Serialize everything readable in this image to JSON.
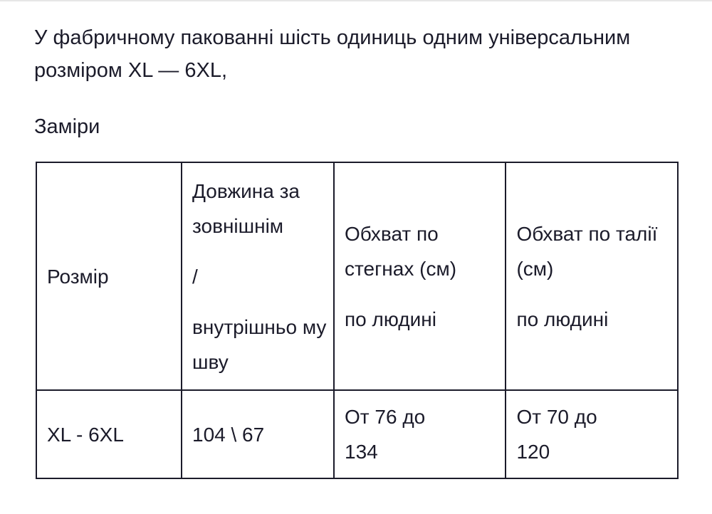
{
  "intro": "У фабричному пакованні шість одиниць одним універсальним розміром XL — 6XL,",
  "heading": "Заміри",
  "table": {
    "headers": [
      {
        "paragraphs": [
          "Розмір"
        ]
      },
      {
        "paragraphs": [
          "Довжина за зовнішнім",
          "/",
          "внутрішньо му шву"
        ]
      },
      {
        "paragraphs": [
          "Обхват по стегнах (см)",
          "по людині"
        ]
      },
      {
        "paragraphs": [
          "Обхват по талії (см)",
          "по людині"
        ]
      }
    ],
    "rows": [
      [
        "XL - 6XL",
        "104 \\ 67",
        "От 76 до 134",
        "От 70 до 120"
      ]
    ]
  }
}
